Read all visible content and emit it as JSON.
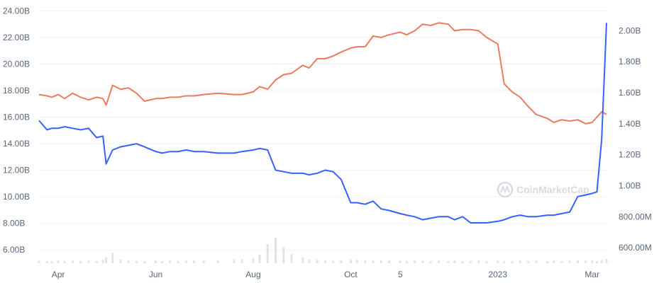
{
  "chart_data": {
    "type": "line",
    "watermark": "CoinMarketCap",
    "x": [
      "2022-03-20",
      "2022-03-25",
      "2022-03-28",
      "2022-04-01",
      "2022-04-05",
      "2022-04-10",
      "2022-04-15",
      "2022-04-20",
      "2022-04-25",
      "2022-04-29",
      "2022-05-01",
      "2022-05-05",
      "2022-05-10",
      "2022-05-15",
      "2022-05-20",
      "2022-05-25",
      "2022-06-01",
      "2022-06-05",
      "2022-06-10",
      "2022-06-15",
      "2022-06-20",
      "2022-06-25",
      "2022-07-01",
      "2022-07-10",
      "2022-07-20",
      "2022-07-25",
      "2022-08-01",
      "2022-08-05",
      "2022-08-10",
      "2022-08-15",
      "2022-08-20",
      "2022-08-25",
      "2022-09-01",
      "2022-09-05",
      "2022-09-10",
      "2022-09-15",
      "2022-09-20",
      "2022-09-25",
      "2022-10-01",
      "2022-10-05",
      "2022-10-10",
      "2022-10-15",
      "2022-10-20",
      "2022-10-25",
      "2022-11-01",
      "2022-11-05",
      "2022-11-10",
      "2022-11-15",
      "2022-11-20",
      "2022-11-25",
      "2022-12-01",
      "2022-12-05",
      "2022-12-10",
      "2022-12-15",
      "2022-12-20",
      "2022-12-25",
      "2023-01-01",
      "2023-01-05",
      "2023-01-10",
      "2023-01-15",
      "2023-01-20",
      "2023-01-25",
      "2023-02-01",
      "2023-02-05",
      "2023-02-10",
      "2023-02-15",
      "2023-02-20",
      "2023-02-25",
      "2023-03-01",
      "2023-03-04",
      "2023-03-07",
      "2023-03-10"
    ],
    "series": [
      {
        "values": [
          17.7,
          17.6,
          17.5,
          17.7,
          17.4,
          17.8,
          17.5,
          17.3,
          17.5,
          17.4,
          16.9,
          18.4,
          18.1,
          18.2,
          17.8,
          17.2,
          17.4,
          17.4,
          17.5,
          17.5,
          17.6,
          17.6,
          17.7,
          17.8,
          17.7,
          17.7,
          17.9,
          18.3,
          18.1,
          18.8,
          19.2,
          19.3,
          19.9,
          19.7,
          20.4,
          20.4,
          20.6,
          20.9,
          21.2,
          21.3,
          21.3,
          22.1,
          22.0,
          22.2,
          22.4,
          22.2,
          22.5,
          23.0,
          22.9,
          23.1,
          23.0,
          22.5,
          22.6,
          22.6,
          22.5,
          22.0,
          21.5,
          18.5,
          17.9,
          17.5,
          16.8,
          16.2,
          15.9,
          15.6,
          15.8,
          15.7,
          15.8,
          15.5,
          15.6,
          16.0,
          16.4,
          16.2
        ]
      },
      {
        "values": [
          1.42,
          1.36,
          1.37,
          1.37,
          1.38,
          1.37,
          1.36,
          1.37,
          1.31,
          1.32,
          1.14,
          1.23,
          1.25,
          1.26,
          1.27,
          1.25,
          1.22,
          1.21,
          1.22,
          1.22,
          1.23,
          1.22,
          1.22,
          1.21,
          1.21,
          1.22,
          1.23,
          1.24,
          1.23,
          1.1,
          1.09,
          1.08,
          1.08,
          1.07,
          1.08,
          1.1,
          1.09,
          1.04,
          0.89,
          0.89,
          0.88,
          0.9,
          0.85,
          0.84,
          0.82,
          0.81,
          0.8,
          0.78,
          0.79,
          0.8,
          0.8,
          0.78,
          0.8,
          0.76,
          0.76,
          0.76,
          0.77,
          0.78,
          0.8,
          0.81,
          0.8,
          0.8,
          0.81,
          0.81,
          0.82,
          0.83,
          0.93,
          0.94,
          0.95,
          0.96,
          1.3,
          2.05
        ]
      }
    ],
    "series_colors": [
      "#ea7a61",
      "#3861fb"
    ],
    "volume": [
      0.06,
      0.05,
      0.05,
      0.06,
      0.05,
      0.07,
      0.05,
      0.06,
      0.05,
      0.08,
      0.14,
      0.25,
      0.09,
      0.06,
      0.05,
      0.05,
      0.06,
      0.05,
      0.06,
      0.05,
      0.06,
      0.07,
      0.06,
      0.06,
      0.08,
      0.09,
      0.12,
      0.2,
      0.45,
      0.6,
      0.38,
      0.22,
      0.14,
      0.09,
      0.08,
      0.07,
      0.06,
      0.07,
      0.08,
      0.08,
      0.06,
      0.07,
      0.07,
      0.06,
      0.06,
      0.05,
      0.06,
      0.06,
      0.05,
      0.06,
      0.05,
      0.06,
      0.05,
      0.05,
      0.06,
      0.05,
      0.06,
      0.05,
      0.05,
      0.06,
      0.05,
      0.07,
      0.05,
      0.06,
      0.05,
      0.06,
      0.07,
      0.06,
      0.06,
      0.05,
      0.08,
      0.1
    ],
    "left_axis": {
      "ylim": [
        5.0,
        24.5
      ],
      "ticks": [
        24.0,
        22.0,
        20.0,
        18.0,
        16.0,
        14.0,
        12.0,
        10.0,
        8.0,
        6.0
      ],
      "tick_labels": [
        "24.00B",
        "22.00B",
        "20.00B",
        "18.00B",
        "16.00B",
        "14.00B",
        "12.00B",
        "10.00B",
        "8.00B",
        "6.00B"
      ]
    },
    "right_axis": {
      "ylim": [
        0.5,
        2.17
      ],
      "ticks": [
        2.0,
        1.8,
        1.6,
        1.4,
        1.2,
        1.0,
        0.8,
        0.6
      ],
      "tick_labels": [
        "2.00B",
        "1.80B",
        "1.60B",
        "1.40B",
        "1.20B",
        "1.00B",
        "800.00M",
        "600.00M"
      ]
    },
    "x_ticks": [
      {
        "date": "2022-04-01",
        "label": "Apr"
      },
      {
        "date": "2022-06-01",
        "label": "Jun"
      },
      {
        "date": "2022-08-01",
        "label": "Aug"
      },
      {
        "date": "2022-10-01",
        "label": "Oct"
      },
      {
        "date": "2022-11-01",
        "label": "5"
      },
      {
        "date": "2023-01-01",
        "label": "2023"
      },
      {
        "date": "2023-03-01",
        "label": "Mar"
      }
    ],
    "grid": true
  }
}
